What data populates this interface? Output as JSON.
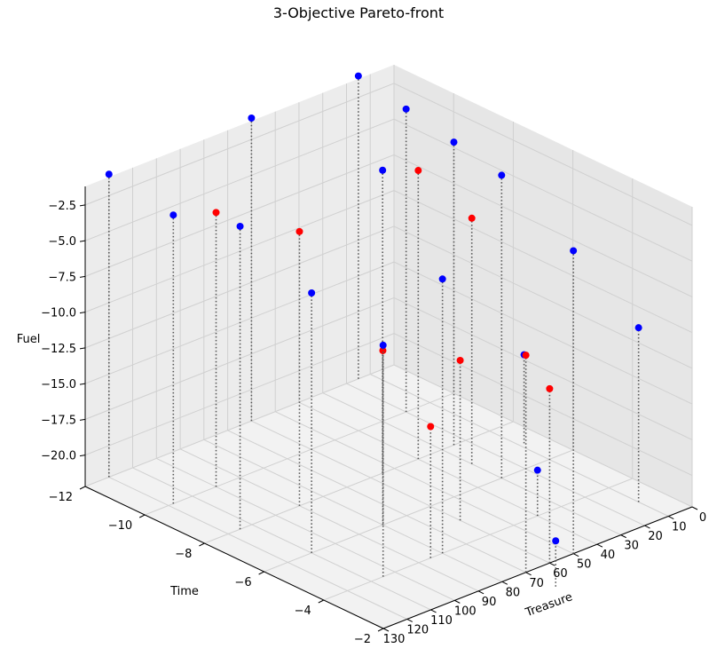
{
  "chart_data": {
    "type": "scatter",
    "projection": "3d",
    "title": "3-Objective Pareto-front",
    "xlabel": "Treasure",
    "ylabel": "Time",
    "zlabel": "Fuel",
    "x_ticks": [
      0,
      10,
      20,
      30,
      40,
      50,
      60,
      70,
      80,
      90,
      100,
      110,
      120,
      130
    ],
    "y_ticks": [
      -12,
      -10,
      -8,
      -6,
      -4,
      -2
    ],
    "z_ticks": [
      -2.5,
      -5.0,
      -7.5,
      -10.0,
      -12.5,
      -15.0,
      -17.5,
      -20.0
    ],
    "z_tick_labels": [
      "−2.5",
      "−5.0",
      "−7.5",
      "−10.0",
      "−12.5",
      "−15.0",
      "−17.5",
      "−20.0"
    ],
    "y_tick_labels": [
      "−12",
      "−10",
      "−8",
      "−6",
      "−4",
      "−2"
    ],
    "stems": "dotted",
    "grid": true,
    "colors": {
      "group_a": "#0000ff",
      "group_b": "#ff0000",
      "stem": "#555555",
      "pane": "#f2f2f2",
      "grid": "#d0d0d0"
    },
    "series": [
      {
        "color": "#0000ff",
        "points": [
          {
            "x": 120,
            "y": -12,
            "z": -1
          },
          {
            "x": 118,
            "y": -10,
            "z": -2
          },
          {
            "x": 115,
            "y": -8,
            "z": -1
          },
          {
            "x": 110,
            "y": -6,
            "z": -4
          },
          {
            "x": 105,
            "y": -4,
            "z": -6
          },
          {
            "x": 70,
            "y": -1,
            "z": -19
          },
          {
            "x": 80,
            "y": -4,
            "z": -3
          },
          {
            "x": 50,
            "y": -2,
            "z": -1
          },
          {
            "x": 55,
            "y": -8,
            "z": -1
          },
          {
            "x": 60,
            "y": -12,
            "z": -1
          },
          {
            "x": 40,
            "y": -4,
            "z": -19
          },
          {
            "x": 30,
            "y": -6,
            "z": -1
          },
          {
            "x": 25,
            "y": -8,
            "z": -1
          },
          {
            "x": 20,
            "y": -10,
            "z": -1
          },
          {
            "x": 15,
            "y": -12,
            "z": -1
          },
          {
            "x": 10,
            "y": -3,
            "z": -10
          },
          {
            "x": 8,
            "y": -7,
            "z": -16
          }
        ]
      },
      {
        "color": "#ff0000",
        "points": [
          {
            "x": 100,
            "y": -10,
            "z": -3
          },
          {
            "x": 90,
            "y": -8,
            "z": -3
          },
          {
            "x": 85,
            "y": -4,
            "z": -13
          },
          {
            "x": 80,
            "y": -6,
            "z": -10
          },
          {
            "x": 70,
            "y": -2,
            "z": -7
          },
          {
            "x": 60,
            "y": -5,
            "z": -11
          },
          {
            "x": 40,
            "y": -8,
            "z": -2
          },
          {
            "x": 30,
            "y": -7,
            "z": -5
          },
          {
            "x": 60,
            "y": -2,
            "z": -10
          }
        ]
      }
    ]
  }
}
